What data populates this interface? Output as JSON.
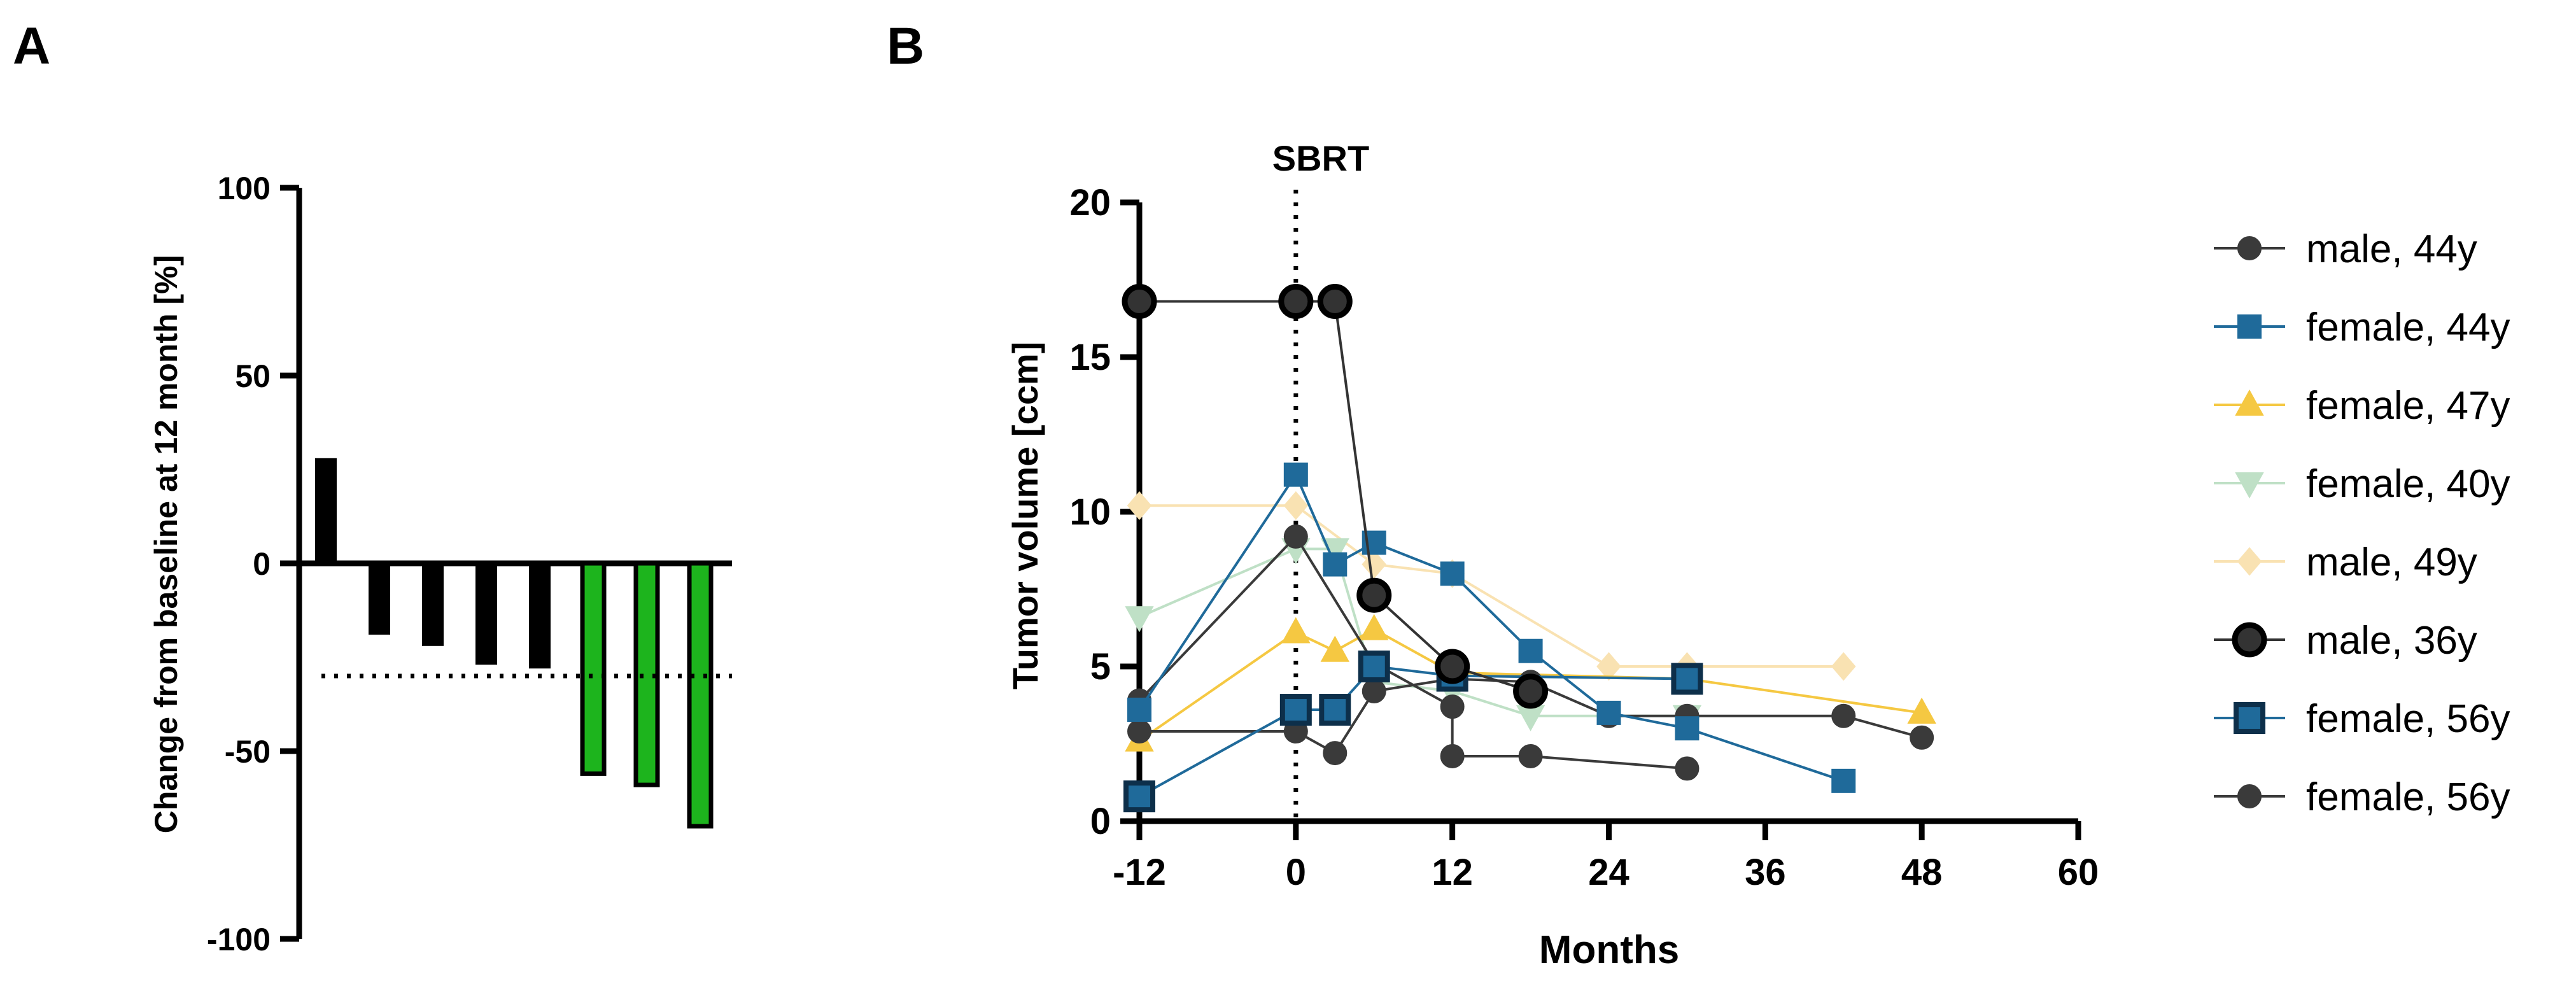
{
  "chart_data": [
    {
      "panel_label": "A",
      "type": "bar",
      "ylabel": "Change from baseline at 12 month [%]",
      "ylim": [
        -100,
        100
      ],
      "yticks": [
        100,
        50,
        0,
        -50,
        -100
      ],
      "reference_line": -30,
      "values": [
        28,
        -19,
        -22,
        -27,
        -28,
        -56,
        -59,
        -70
      ],
      "bar_colors": [
        "#000000",
        "#000000",
        "#000000",
        "#000000",
        "#000000",
        "#1db41d",
        "#1db41d",
        "#1db41d"
      ]
    },
    {
      "panel_label": "B",
      "type": "line",
      "xlabel": "Months",
      "ylabel": "Tumor volume [ccm]",
      "xlim": [
        -12,
        60
      ],
      "ylim": [
        0,
        20
      ],
      "xticks": [
        -12,
        0,
        12,
        24,
        36,
        48,
        60
      ],
      "yticks": [
        0,
        5,
        10,
        15,
        20
      ],
      "annotation": {
        "label": "SBRT",
        "x": 0
      },
      "series": [
        {
          "name": "male, 44y",
          "marker": "circle",
          "color": "#3a3a3a",
          "stroke": "#3a3a3a",
          "points": [
            [
              -12,
              2.9
            ],
            [
              0,
              2.9
            ],
            [
              3,
              2.2
            ],
            [
              6,
              4.2
            ],
            [
              12,
              4.6
            ],
            [
              18,
              4.5
            ],
            [
              24,
              3.4
            ],
            [
              30,
              3.4
            ],
            [
              42,
              3.4
            ],
            [
              48,
              2.7
            ]
          ]
        },
        {
          "name": "female, 44y",
          "marker": "square",
          "color": "#1f6a9a",
          "stroke": "#1f6a9a",
          "points": [
            [
              -12,
              3.6
            ],
            [
              0,
              11.2
            ],
            [
              3,
              8.3
            ],
            [
              6,
              9.0
            ],
            [
              12,
              8.0
            ],
            [
              18,
              5.5
            ],
            [
              24,
              3.5
            ],
            [
              30,
              3.0
            ],
            [
              42,
              1.3
            ]
          ]
        },
        {
          "name": "female, 47y",
          "marker": "triangle-up",
          "color": "#f5c842",
          "stroke": "#f5c842",
          "points": [
            [
              -12,
              2.6
            ],
            [
              0,
              6.1
            ],
            [
              3,
              5.5
            ],
            [
              6,
              6.2
            ],
            [
              12,
              4.8
            ],
            [
              30,
              4.6
            ],
            [
              48,
              3.5
            ]
          ]
        },
        {
          "name": "female, 40y",
          "marker": "triangle-down",
          "color": "#bfe0c6",
          "stroke": "#bfe0c6",
          "points": [
            [
              -12,
              6.6
            ],
            [
              0,
              8.8
            ],
            [
              3,
              8.8
            ],
            [
              6,
              4.5
            ],
            [
              12,
              4.2
            ],
            [
              18,
              3.4
            ],
            [
              30,
              3.4
            ]
          ]
        },
        {
          "name": "male, 49y",
          "marker": "diamond",
          "color": "#f9e2b2",
          "stroke": "#f9e2b2",
          "points": [
            [
              -12,
              10.2
            ],
            [
              0,
              10.2
            ],
            [
              6,
              8.3
            ],
            [
              12,
              8.0
            ],
            [
              24,
              5.0
            ],
            [
              30,
              5.0
            ],
            [
              42,
              5.0
            ]
          ]
        },
        {
          "name": "male, 36y",
          "marker": "circle-outlined",
          "color": "#333333",
          "stroke": "#000000",
          "points": [
            [
              -12,
              16.8
            ],
            [
              0,
              16.8
            ],
            [
              3,
              16.8
            ],
            [
              6,
              7.3
            ],
            [
              12,
              5.0
            ],
            [
              18,
              4.2
            ]
          ]
        },
        {
          "name": "female, 56y",
          "marker": "square-outlined",
          "color": "#1f6a9a",
          "stroke": "#0d2f4a",
          "points": [
            [
              -12,
              0.8
            ],
            [
              0,
              3.6
            ],
            [
              3,
              3.6
            ],
            [
              6,
              5.0
            ],
            [
              12,
              4.7
            ],
            [
              30,
              4.6
            ]
          ]
        },
        {
          "name": "female, 56y",
          "marker": "circle",
          "color": "#3a3a3a",
          "stroke": "#3a3a3a",
          "points": [
            [
              -12,
              3.9
            ],
            [
              0,
              9.2
            ],
            [
              6,
              5.1
            ],
            [
              12,
              3.7
            ],
            [
              12,
              2.1
            ],
            [
              18,
              2.1
            ],
            [
              30,
              1.7
            ]
          ]
        }
      ]
    }
  ]
}
